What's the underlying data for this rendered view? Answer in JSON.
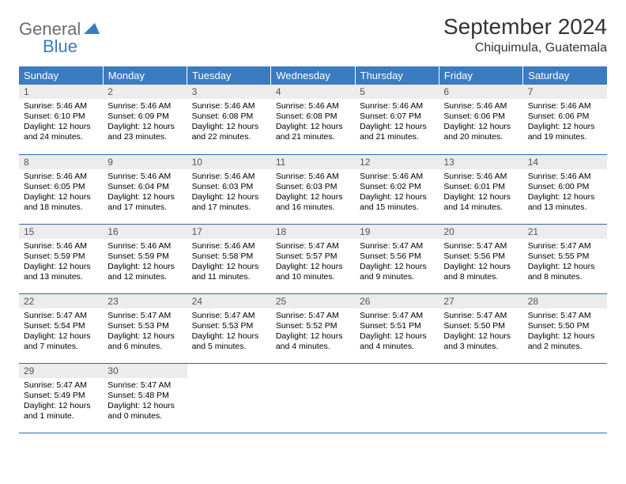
{
  "logo": {
    "part1": "General",
    "part2": "Blue",
    "triangle_color": "#3b7bbf"
  },
  "title": "September 2024",
  "location": "Chiquimula, Guatemala",
  "header_bg": "#3b7bbf",
  "header_fg": "#ffffff",
  "daynum_bg": "#ececec",
  "rule_color": "#2f6aa8",
  "columns": [
    "Sunday",
    "Monday",
    "Tuesday",
    "Wednesday",
    "Thursday",
    "Friday",
    "Saturday"
  ],
  "weeks": [
    [
      {
        "n": "1",
        "sr": "5:46 AM",
        "ss": "6:10 PM",
        "dl": "12 hours and 24 minutes."
      },
      {
        "n": "2",
        "sr": "5:46 AM",
        "ss": "6:09 PM",
        "dl": "12 hours and 23 minutes."
      },
      {
        "n": "3",
        "sr": "5:46 AM",
        "ss": "6:08 PM",
        "dl": "12 hours and 22 minutes."
      },
      {
        "n": "4",
        "sr": "5:46 AM",
        "ss": "6:08 PM",
        "dl": "12 hours and 21 minutes."
      },
      {
        "n": "5",
        "sr": "5:46 AM",
        "ss": "6:07 PM",
        "dl": "12 hours and 21 minutes."
      },
      {
        "n": "6",
        "sr": "5:46 AM",
        "ss": "6:06 PM",
        "dl": "12 hours and 20 minutes."
      },
      {
        "n": "7",
        "sr": "5:46 AM",
        "ss": "6:06 PM",
        "dl": "12 hours and 19 minutes."
      }
    ],
    [
      {
        "n": "8",
        "sr": "5:46 AM",
        "ss": "6:05 PM",
        "dl": "12 hours and 18 minutes."
      },
      {
        "n": "9",
        "sr": "5:46 AM",
        "ss": "6:04 PM",
        "dl": "12 hours and 17 minutes."
      },
      {
        "n": "10",
        "sr": "5:46 AM",
        "ss": "6:03 PM",
        "dl": "12 hours and 17 minutes."
      },
      {
        "n": "11",
        "sr": "5:46 AM",
        "ss": "6:03 PM",
        "dl": "12 hours and 16 minutes."
      },
      {
        "n": "12",
        "sr": "5:46 AM",
        "ss": "6:02 PM",
        "dl": "12 hours and 15 minutes."
      },
      {
        "n": "13",
        "sr": "5:46 AM",
        "ss": "6:01 PM",
        "dl": "12 hours and 14 minutes."
      },
      {
        "n": "14",
        "sr": "5:46 AM",
        "ss": "6:00 PM",
        "dl": "12 hours and 13 minutes."
      }
    ],
    [
      {
        "n": "15",
        "sr": "5:46 AM",
        "ss": "5:59 PM",
        "dl": "12 hours and 13 minutes."
      },
      {
        "n": "16",
        "sr": "5:46 AM",
        "ss": "5:59 PM",
        "dl": "12 hours and 12 minutes."
      },
      {
        "n": "17",
        "sr": "5:46 AM",
        "ss": "5:58 PM",
        "dl": "12 hours and 11 minutes."
      },
      {
        "n": "18",
        "sr": "5:47 AM",
        "ss": "5:57 PM",
        "dl": "12 hours and 10 minutes."
      },
      {
        "n": "19",
        "sr": "5:47 AM",
        "ss": "5:56 PM",
        "dl": "12 hours and 9 minutes."
      },
      {
        "n": "20",
        "sr": "5:47 AM",
        "ss": "5:56 PM",
        "dl": "12 hours and 8 minutes."
      },
      {
        "n": "21",
        "sr": "5:47 AM",
        "ss": "5:55 PM",
        "dl": "12 hours and 8 minutes."
      }
    ],
    [
      {
        "n": "22",
        "sr": "5:47 AM",
        "ss": "5:54 PM",
        "dl": "12 hours and 7 minutes."
      },
      {
        "n": "23",
        "sr": "5:47 AM",
        "ss": "5:53 PM",
        "dl": "12 hours and 6 minutes."
      },
      {
        "n": "24",
        "sr": "5:47 AM",
        "ss": "5:53 PM",
        "dl": "12 hours and 5 minutes."
      },
      {
        "n": "25",
        "sr": "5:47 AM",
        "ss": "5:52 PM",
        "dl": "12 hours and 4 minutes."
      },
      {
        "n": "26",
        "sr": "5:47 AM",
        "ss": "5:51 PM",
        "dl": "12 hours and 4 minutes."
      },
      {
        "n": "27",
        "sr": "5:47 AM",
        "ss": "5:50 PM",
        "dl": "12 hours and 3 minutes."
      },
      {
        "n": "28",
        "sr": "5:47 AM",
        "ss": "5:50 PM",
        "dl": "12 hours and 2 minutes."
      }
    ],
    [
      {
        "n": "29",
        "sr": "5:47 AM",
        "ss": "5:49 PM",
        "dl": "12 hours and 1 minute."
      },
      {
        "n": "30",
        "sr": "5:47 AM",
        "ss": "5:48 PM",
        "dl": "12 hours and 0 minutes."
      },
      null,
      null,
      null,
      null,
      null
    ]
  ],
  "labels": {
    "sunrise": "Sunrise: ",
    "sunset": "Sunset: ",
    "daylight": "Daylight: "
  }
}
